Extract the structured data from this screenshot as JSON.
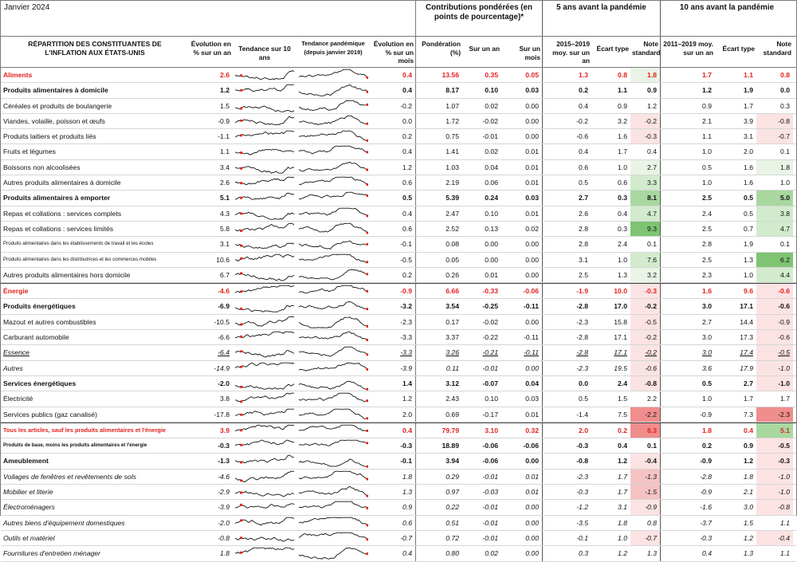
{
  "header": {
    "date": "Janvier 2024",
    "group_contributions": "Contributions pondérées (en points de pourcentage)*",
    "group_5y": "5 ans avant la pandémie",
    "group_10y": "10 ans avant la pandémie"
  },
  "columns": {
    "name": "RÉPARTITION DES CONSTITUANTES DE L'INFLATION AUX ÉTATS-UNIS",
    "yoy": "Évolution en % sur un an",
    "trend10": "Tendance sur 10 ans",
    "trendpan": "Tendance pandémique (depuis janvier 2019)",
    "mom": "Évolution en % sur un mois",
    "weight": "Pondération (%)",
    "c_yoy": "Sur un an",
    "c_mom": "Sur un mois",
    "p5_avg": "2015–2019 moy. sur un an",
    "p5_sd": "Écart type",
    "p5_z": "Note standard",
    "p10_avg": "2011–2019 moy. sur un an",
    "p10_sd": "Écart type",
    "p10_z": "Note standard"
  },
  "rows": [
    {
      "name": "Aliments",
      "yoy": "2.6",
      "mom": "0.4",
      "weight": "13.56",
      "cy": "0.35",
      "cm": "0.05",
      "a5": "1.3",
      "s5": "0.8",
      "z5": "1.8",
      "a10": "1.7",
      "s10": "1.1",
      "z10": "0.8",
      "style": "red",
      "h5": "g1",
      "h10": ""
    },
    {
      "name": "Produits alimentaires à domicile",
      "yoy": "1.2",
      "mom": "0.4",
      "weight": "8.17",
      "cy": "0.10",
      "cm": "0.03",
      "a5": "0.2",
      "s5": "1.1",
      "z5": "0.9",
      "a10": "1.2",
      "s10": "1.9",
      "z10": "0.0",
      "style": "bold",
      "h5": "",
      "h10": ""
    },
    {
      "name": "Céréales et produits de boulangerie",
      "yoy": "1.5",
      "mom": "-0.2",
      "weight": "1.07",
      "cy": "0.02",
      "cm": "0.00",
      "a5": "0.4",
      "s5": "0.9",
      "z5": "1.2",
      "a10": "0.9",
      "s10": "1.7",
      "z10": "0.3",
      "style": "",
      "h5": "",
      "h10": ""
    },
    {
      "name": "Viandes, volaille, poisson et œufs",
      "yoy": "-0.9",
      "mom": "0.0",
      "weight": "1.72",
      "cy": "-0.02",
      "cm": "0.00",
      "a5": "-0.2",
      "s5": "3.2",
      "z5": "-0.2",
      "a10": "2.1",
      "s10": "3.9",
      "z10": "-0.8",
      "style": "",
      "h5": "r1",
      "h10": "r1"
    },
    {
      "name": "Produits laitiers et produits liés",
      "yoy": "-1.1",
      "mom": "0.2",
      "weight": "0.75",
      "cy": "-0.01",
      "cm": "0.00",
      "a5": "-0.6",
      "s5": "1.6",
      "z5": "-0.3",
      "a10": "1.1",
      "s10": "3.1",
      "z10": "-0.7",
      "style": "",
      "h5": "r1",
      "h10": "r1"
    },
    {
      "name": "Fruits et légumes",
      "yoy": "1.1",
      "mom": "0.4",
      "weight": "1.41",
      "cy": "0.02",
      "cm": "0.01",
      "a5": "0.4",
      "s5": "1.7",
      "z5": "0.4",
      "a10": "1.0",
      "s10": "2.0",
      "z10": "0.1",
      "style": "",
      "h5": "",
      "h10": ""
    },
    {
      "name": "Boissons non alcoolisées",
      "yoy": "3.4",
      "mom": "1.2",
      "weight": "1.03",
      "cy": "0.04",
      "cm": "0.01",
      "a5": "0.6",
      "s5": "1.0",
      "z5": "2.7",
      "a10": "0.5",
      "s10": "1.6",
      "z10": "1.8",
      "style": "",
      "h5": "g1",
      "h10": "g1"
    },
    {
      "name": "Autres produits alimentaires à domicile",
      "yoy": "2.6",
      "mom": "0.6",
      "weight": "2.19",
      "cy": "0.06",
      "cm": "0.01",
      "a5": "0.5",
      "s5": "0.6",
      "z5": "3.3",
      "a10": "1.0",
      "s10": "1.6",
      "z10": "1.0",
      "style": "",
      "h5": "g2",
      "h10": ""
    },
    {
      "name": "Produits alimentaires à emporter",
      "yoy": "5.1",
      "mom": "0.5",
      "weight": "5.39",
      "cy": "0.24",
      "cm": "0.03",
      "a5": "2.7",
      "s5": "0.3",
      "z5": "8.1",
      "a10": "2.5",
      "s10": "0.5",
      "z10": "5.0",
      "style": "bold",
      "h5": "g3",
      "h10": "g3"
    },
    {
      "name": "Repas et collations : services complets",
      "yoy": "4.3",
      "mom": "0.4",
      "weight": "2.47",
      "cy": "0.10",
      "cm": "0.01",
      "a5": "2.6",
      "s5": "0.4",
      "z5": "4.7",
      "a10": "2.4",
      "s10": "0.5",
      "z10": "3.8",
      "style": "",
      "h5": "g2",
      "h10": "g2"
    },
    {
      "name": "Repas et collations : services limités",
      "yoy": "5.8",
      "mom": "0.6",
      "weight": "2.52",
      "cy": "0.13",
      "cm": "0.02",
      "a5": "2.8",
      "s5": "0.3",
      "z5": "9.3",
      "a10": "2.5",
      "s10": "0.7",
      "z10": "4.7",
      "style": "",
      "h5": "g4",
      "h10": "g2"
    },
    {
      "name": "Produits alimentaires dans les établissements de travail et les écoles",
      "yoy": "3.1",
      "mom": "-0.1",
      "weight": "0.08",
      "cy": "0.00",
      "cm": "0.00",
      "a5": "2.8",
      "s5": "2.4",
      "z5": "0.1",
      "a10": "2.8",
      "s10": "1.9",
      "z10": "0.1",
      "style": "tiny",
      "h5": "",
      "h10": ""
    },
    {
      "name": "Produits alimentaires dans les distributrices et les commerces mobiles",
      "yoy": "10.6",
      "mom": "-0.5",
      "weight": "0.05",
      "cy": "0.00",
      "cm": "0.00",
      "a5": "3.1",
      "s5": "1.0",
      "z5": "7.6",
      "a10": "2.5",
      "s10": "1.3",
      "z10": "6.2",
      "style": "tiny",
      "h5": "g2",
      "h10": "g4"
    },
    {
      "name": "Autres produits alimentaires hors domicile",
      "yoy": "6.7",
      "mom": "0.2",
      "weight": "0.26",
      "cy": "0.01",
      "cm": "0.00",
      "a5": "2.5",
      "s5": "1.3",
      "z5": "3.2",
      "a10": "2.3",
      "s10": "1.0",
      "z10": "4.4",
      "style": "",
      "h5": "g1",
      "h10": "g2"
    },
    {
      "name": "Énergie",
      "yoy": "-4.6",
      "mom": "-0.9",
      "weight": "6.66",
      "cy": "-0.33",
      "cm": "-0.06",
      "a5": "-1.9",
      "s5": "10.0",
      "z5": "-0.3",
      "a10": "1.6",
      "s10": "9.6",
      "z10": "-0.6",
      "style": "red sec",
      "h5": "r1",
      "h10": "r1"
    },
    {
      "name": "Produits énergétiques",
      "yoy": "-6.9",
      "mom": "-3.2",
      "weight": "3.54",
      "cy": "-0.25",
      "cm": "-0.11",
      "a5": "-2.8",
      "s5": "17.0",
      "z5": "-0.2",
      "a10": "3.0",
      "s10": "17.1",
      "z10": "-0.6",
      "style": "bold",
      "h5": "r1",
      "h10": "r1"
    },
    {
      "name": "Mazout et autres combustibles",
      "yoy": "-10.5",
      "mom": "-2.3",
      "weight": "0.17",
      "cy": "-0.02",
      "cm": "0.00",
      "a5": "-2.3",
      "s5": "15.8",
      "z5": "-0.5",
      "a10": "2.7",
      "s10": "14.4",
      "z10": "-0.9",
      "style": "",
      "h5": "r1",
      "h10": "r1"
    },
    {
      "name": "Carburant automobile",
      "yoy": "-6.6",
      "mom": "-3.3",
      "weight": "3.37",
      "cy": "-0.22",
      "cm": "-0.11",
      "a5": "-2.8",
      "s5": "17.1",
      "z5": "-0.2",
      "a10": "3.0",
      "s10": "17.3",
      "z10": "-0.6",
      "style": "",
      "h5": "r1",
      "h10": "r1"
    },
    {
      "name": "Essence",
      "yoy": "-6.4",
      "mom": "-3.3",
      "weight": "3.26",
      "cy": "-0.21",
      "cm": "-0.11",
      "a5": "-2.8",
      "s5": "17.1",
      "z5": "-0.2",
      "a10": "3.0",
      "s10": "17.4",
      "z10": "-0.5",
      "style": "ital und",
      "h5": "r1",
      "h10": "r1"
    },
    {
      "name": "Autres",
      "yoy": "-14.9",
      "mom": "-3.9",
      "weight": "0.11",
      "cy": "-0.01",
      "cm": "0.00",
      "a5": "-2.3",
      "s5": "19.5",
      "z5": "-0.6",
      "a10": "3.6",
      "s10": "17.9",
      "z10": "-1.0",
      "style": "ital",
      "h5": "r1",
      "h10": "r1"
    },
    {
      "name": "Services énergétiques",
      "yoy": "-2.0",
      "mom": "1.4",
      "weight": "3.12",
      "cy": "-0.07",
      "cm": "0.04",
      "a5": "0.0",
      "s5": "2.4",
      "z5": "-0.8",
      "a10": "0.5",
      "s10": "2.7",
      "z10": "-1.0",
      "style": "bold",
      "h5": "r1",
      "h10": "r1"
    },
    {
      "name": "Électricité",
      "yoy": "3.8",
      "mom": "1.2",
      "weight": "2.43",
      "cy": "0.10",
      "cm": "0.03",
      "a5": "0.5",
      "s5": "1.5",
      "z5": "2.2",
      "a10": "1.0",
      "s10": "1.7",
      "z10": "1.7",
      "style": "",
      "h5": "",
      "h10": ""
    },
    {
      "name": "Services publics (gaz canalisé)",
      "yoy": "-17.8",
      "mom": "2.0",
      "weight": "0.69",
      "cy": "-0.17",
      "cm": "0.01",
      "a5": "-1.4",
      "s5": "7.5",
      "z5": "-2.2",
      "a10": "-0.9",
      "s10": "7.3",
      "z10": "-2.3",
      "style": "",
      "h5": "r3",
      "h10": "r3"
    },
    {
      "name": "Tous les articles, sauf les produits alimentaires et l'énergie",
      "yoy": "3.9",
      "mom": "0.4",
      "weight": "79.79",
      "cy": "3.10",
      "cm": "0.32",
      "a5": "2.0",
      "s5": "0.2",
      "z5": "8.3",
      "a10": "1.8",
      "s10": "0.4",
      "z10": "5.1",
      "style": "red sec small",
      "h5": "r3",
      "h10": "g3"
    },
    {
      "name": "Produits de base, moins les produits alimentaires et l'énergie",
      "yoy": "-0.3",
      "mom": "-0.3",
      "weight": "18.89",
      "cy": "-0.06",
      "cm": "-0.06",
      "a5": "-0.3",
      "s5": "0.4",
      "z5": "0.1",
      "a10": "0.2",
      "s10": "0.9",
      "z10": "-0.5",
      "style": "bold tiny",
      "h5": "",
      "h10": "r1"
    },
    {
      "name": "Ameublement",
      "yoy": "-1.3",
      "mom": "-0.1",
      "weight": "3.94",
      "cy": "-0.06",
      "cm": "0.00",
      "a5": "-0.8",
      "s5": "1.2",
      "z5": "-0.4",
      "a10": "-0.9",
      "s10": "1.2",
      "z10": "-0.3",
      "style": "bold",
      "h5": "r1",
      "h10": "r1"
    },
    {
      "name": "Voilages de fenêtres et revêtements de sols",
      "yoy": "-4.6",
      "mom": "1.8",
      "weight": "0.29",
      "cy": "-0.01",
      "cm": "0.01",
      "a5": "-2.3",
      "s5": "1.7",
      "z5": "-1.3",
      "a10": "-2.8",
      "s10": "1.8",
      "z10": "-1.0",
      "style": "ital",
      "h5": "r2",
      "h10": "r1"
    },
    {
      "name": "Mobilier et literie",
      "yoy": "-2.9",
      "mom": "1.3",
      "weight": "0.97",
      "cy": "-0.03",
      "cm": "0.01",
      "a5": "-0.3",
      "s5": "1.7",
      "z5": "-1.5",
      "a10": "-0.9",
      "s10": "2.1",
      "z10": "-1.0",
      "style": "ital",
      "h5": "r2",
      "h10": "r1"
    },
    {
      "name": "Électroménagers",
      "yoy": "-3.9",
      "mom": "0.9",
      "weight": "0.22",
      "cy": "-0.01",
      "cm": "0.00",
      "a5": "-1.2",
      "s5": "3.1",
      "z5": "-0.9",
      "a10": "-1.6",
      "s10": "3.0",
      "z10": "-0.8",
      "style": "ital",
      "h5": "r1",
      "h10": "r1"
    },
    {
      "name": "Autres biens d'équipement domestiques",
      "yoy": "-2.0",
      "mom": "0.6",
      "weight": "0.51",
      "cy": "-0.01",
      "cm": "0.00",
      "a5": "-3.5",
      "s5": "1.8",
      "z5": "0.8",
      "a10": "-3.7",
      "s10": "1.5",
      "z10": "1.1",
      "style": "ital",
      "h5": "",
      "h10": ""
    },
    {
      "name": "Outils et matériel",
      "yoy": "-0.8",
      "mom": "-0.7",
      "weight": "0.72",
      "cy": "-0.01",
      "cm": "0.00",
      "a5": "-0.1",
      "s5": "1.0",
      "z5": "-0.7",
      "a10": "-0.3",
      "s10": "1.2",
      "z10": "-0.4",
      "style": "ital",
      "h5": "r1",
      "h10": "r1"
    },
    {
      "name": "Fournitures d'entretien ménager",
      "yoy": "1.8",
      "mom": "0.4",
      "weight": "0.80",
      "cy": "0.02",
      "cm": "0.00",
      "a5": "0.3",
      "s5": "1.2",
      "z5": "1.3",
      "a10": "0.4",
      "s10": "1.3",
      "z10": "1.1",
      "style": "ital",
      "h5": "",
      "h10": ""
    }
  ]
}
